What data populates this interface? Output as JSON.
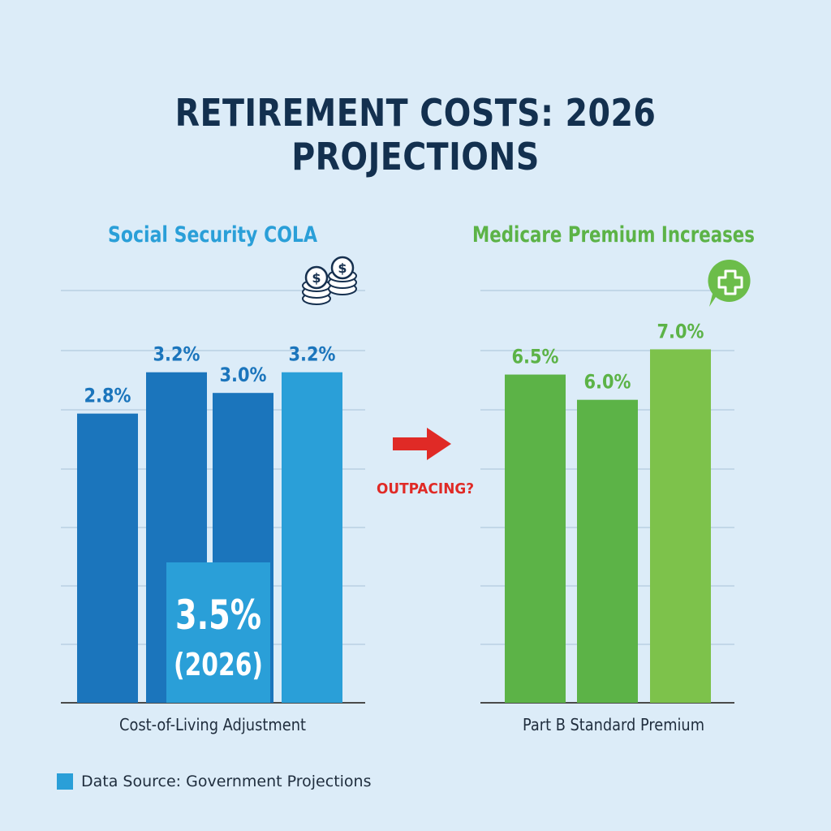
{
  "title": "RETIREMENT COSTS: 2026 PROJECTIONS",
  "chart_data": [
    {
      "type": "bar",
      "title": "Social Security COLA",
      "xlabel": "Cost-of-Living Adjustment",
      "ylabel": "",
      "ylim": [
        0,
        4.4
      ],
      "grid": true,
      "series": [
        {
          "values": [
            2.8,
            3.2,
            3.0,
            3.2
          ]
        }
      ],
      "data_labels": [
        "2.8%",
        "3.2%",
        "3.0%",
        "3.2%"
      ],
      "colors": [
        "#1b75bc",
        "#1b75bc",
        "#1b75bc",
        "#2a9fd8"
      ],
      "title_color": "#2a9fd8",
      "annotation": {
        "value": 3.5,
        "lines": [
          "3.5%",
          "(2026)"
        ],
        "color": "#2a9fd8"
      },
      "icon": "stacked-coins-icon"
    },
    {
      "type": "bar",
      "title": "Medicare Premium Increases",
      "xlabel": "Part B Standard Premium",
      "ylabel": "",
      "ylim": [
        0,
        9
      ],
      "grid": true,
      "series": [
        {
          "values": [
            6.5,
            6.0,
            7.0
          ]
        }
      ],
      "data_labels": [
        "6.5%",
        "6.0%",
        "7.0%"
      ],
      "colors": [
        "#5cb347",
        "#5cb347",
        "#7dc24b"
      ],
      "title_color": "#5cb347",
      "icon": "medical-cross-bubble-icon"
    }
  ],
  "connector": {
    "label": "OUTPACING?",
    "color": "#e02a26",
    "icon": "arrow-right-icon"
  },
  "legend": {
    "label": "Data Source: Government Projections",
    "color": "#2a9fd8"
  }
}
